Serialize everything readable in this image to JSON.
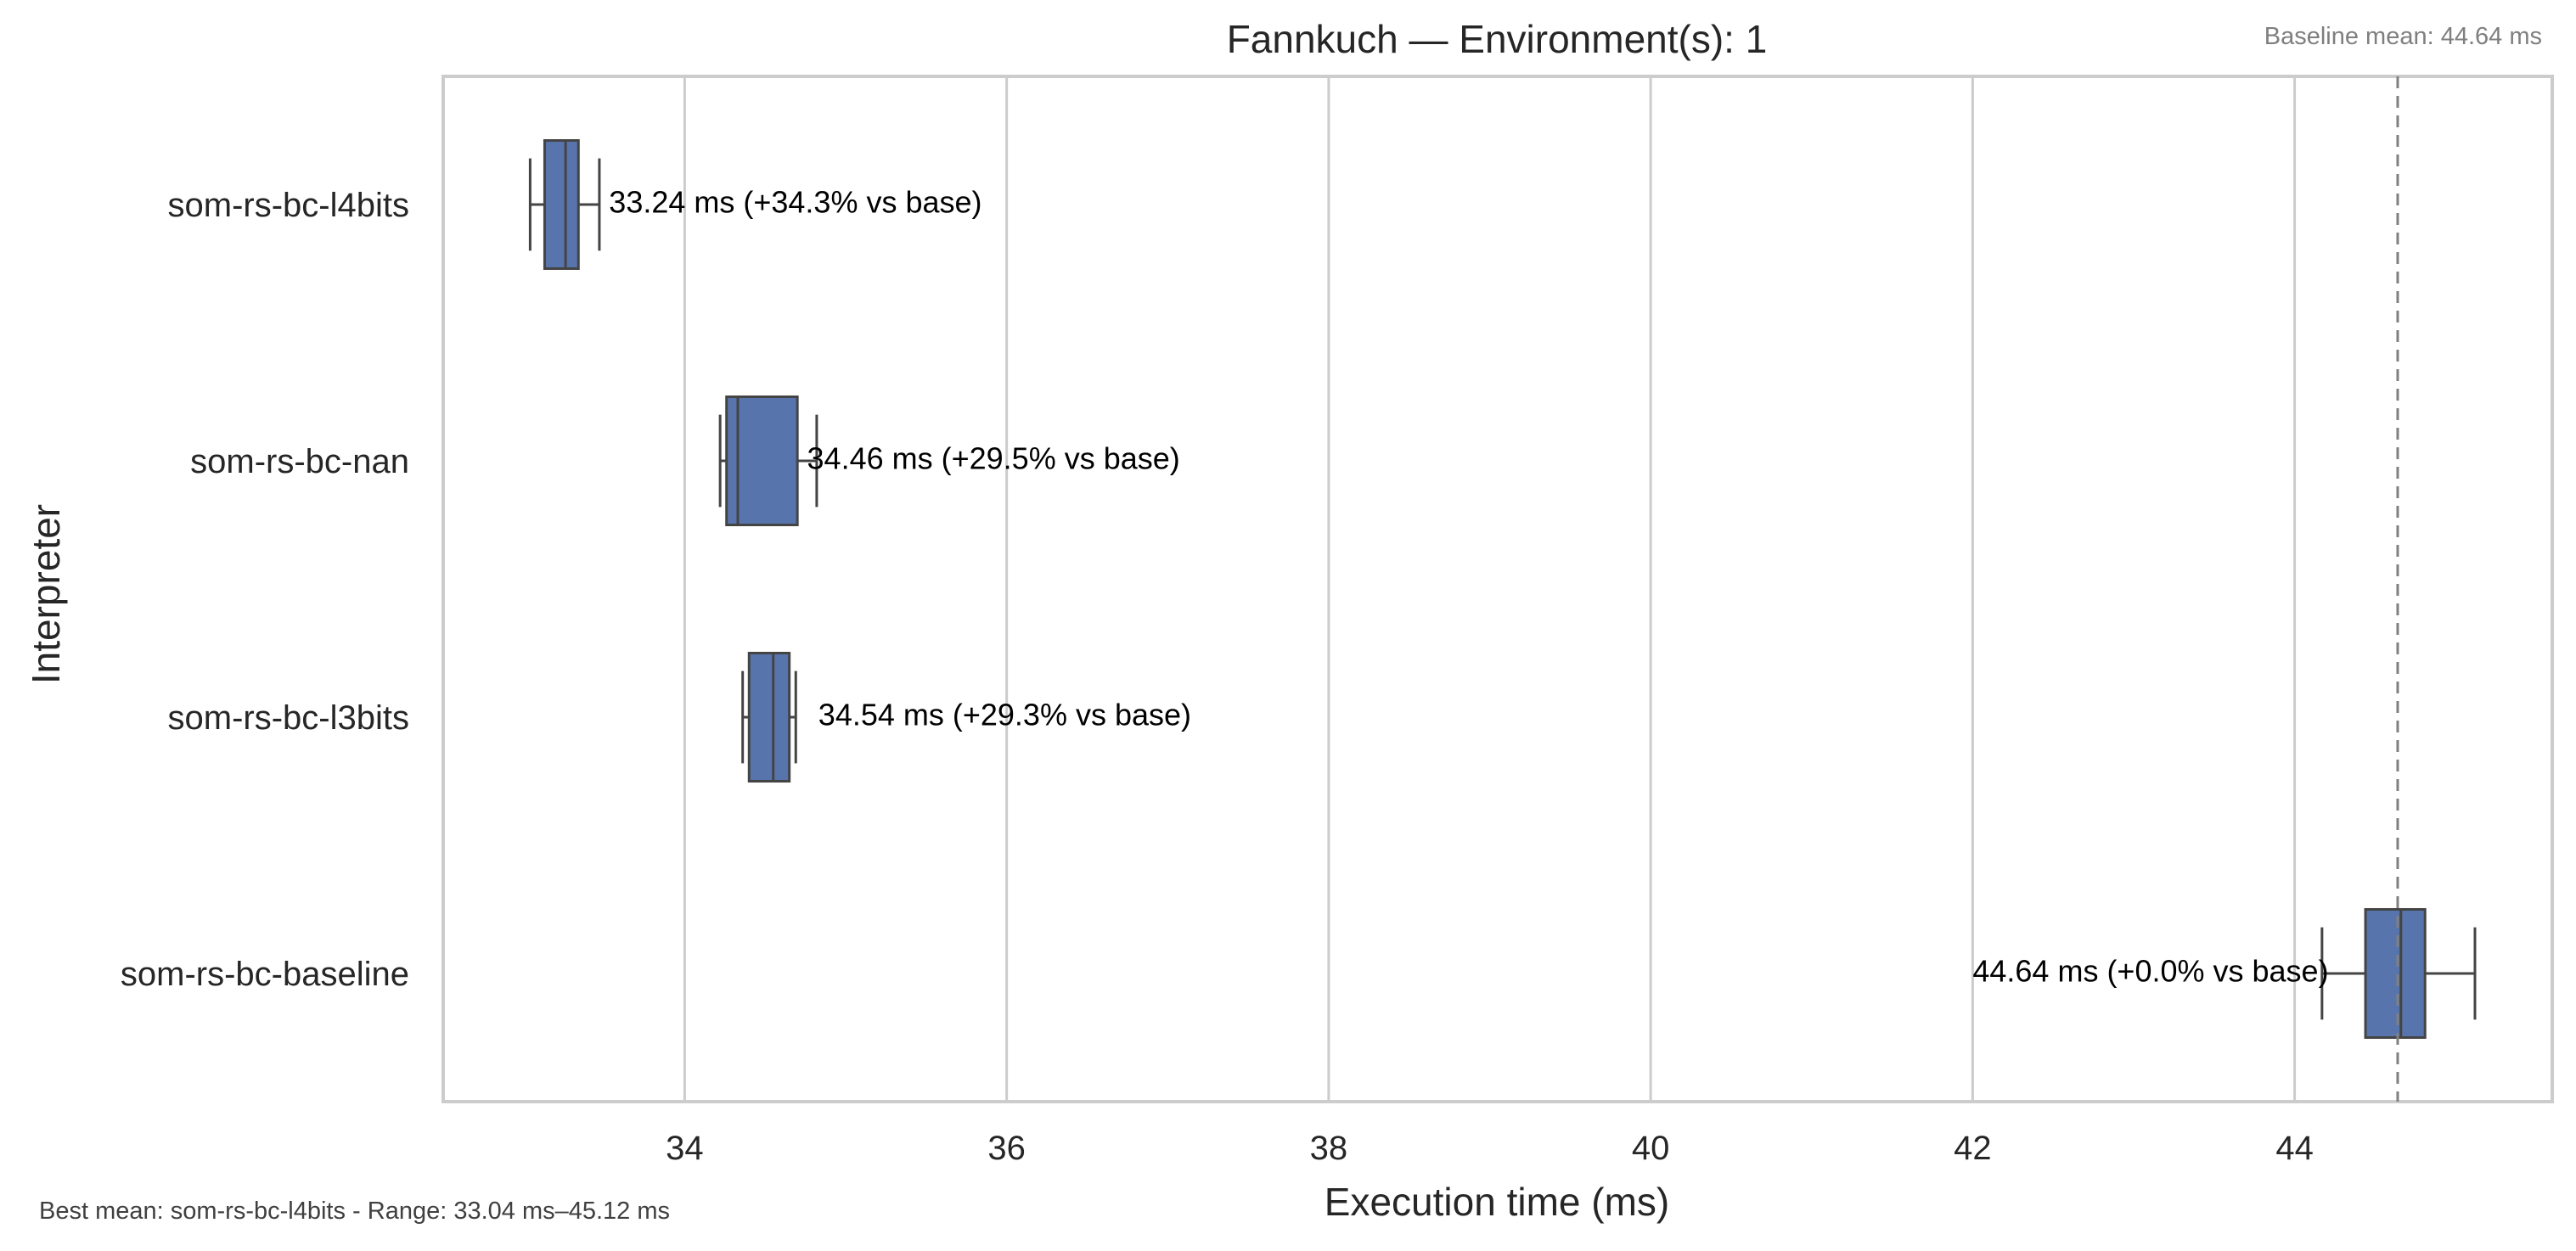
{
  "chart_data": {
    "type": "box",
    "orientation": "horizontal",
    "title": "Fannkuch — Environment(s): 1",
    "xlabel": "Execution time (ms)",
    "ylabel": "Interpreter",
    "xlim": [
      32.5,
      45.6
    ],
    "xticks": [
      34,
      36,
      38,
      40,
      42,
      44
    ],
    "grid": "vertical",
    "box_color": "#5874ad",
    "edge_color": "#444444",
    "baseline_mean": 44.64,
    "baseline_line_color": "#808080",
    "categories": [
      "som-rs-bc-l4bits",
      "som-rs-bc-nan",
      "som-rs-bc-l3bits",
      "som-rs-bc-baseline"
    ],
    "boxes": [
      {
        "name": "som-rs-bc-l4bits",
        "whislo": 33.04,
        "q1": 33.13,
        "med": 33.26,
        "q3": 33.34,
        "whishi": 33.47
      },
      {
        "name": "som-rs-bc-nan",
        "whislo": 34.22,
        "q1": 34.26,
        "med": 34.33,
        "q3": 34.7,
        "whishi": 34.82
      },
      {
        "name": "som-rs-bc-l3bits",
        "whislo": 34.36,
        "q1": 34.4,
        "med": 34.55,
        "q3": 34.65,
        "whishi": 34.69
      },
      {
        "name": "som-rs-bc-baseline",
        "whislo": 44.17,
        "q1": 44.44,
        "med": 44.66,
        "q3": 44.81,
        "whishi": 45.12
      }
    ],
    "annotations": [
      {
        "text": "33.24 ms  (+34.3% vs base)",
        "x": 33.53
      },
      {
        "text": "34.46 ms  (+29.5% vs base)",
        "x": 34.76
      },
      {
        "text": "34.54 ms  (+29.3% vs base)",
        "x": 34.83
      },
      {
        "text": "44.64 ms  (+0.0% vs base)",
        "x": 42.0
      }
    ],
    "corner_note": "Baseline mean: 44.64 ms",
    "footer_note": "Best mean: som-rs-bc-l4bits - Range: 33.04 ms–45.12 ms"
  }
}
